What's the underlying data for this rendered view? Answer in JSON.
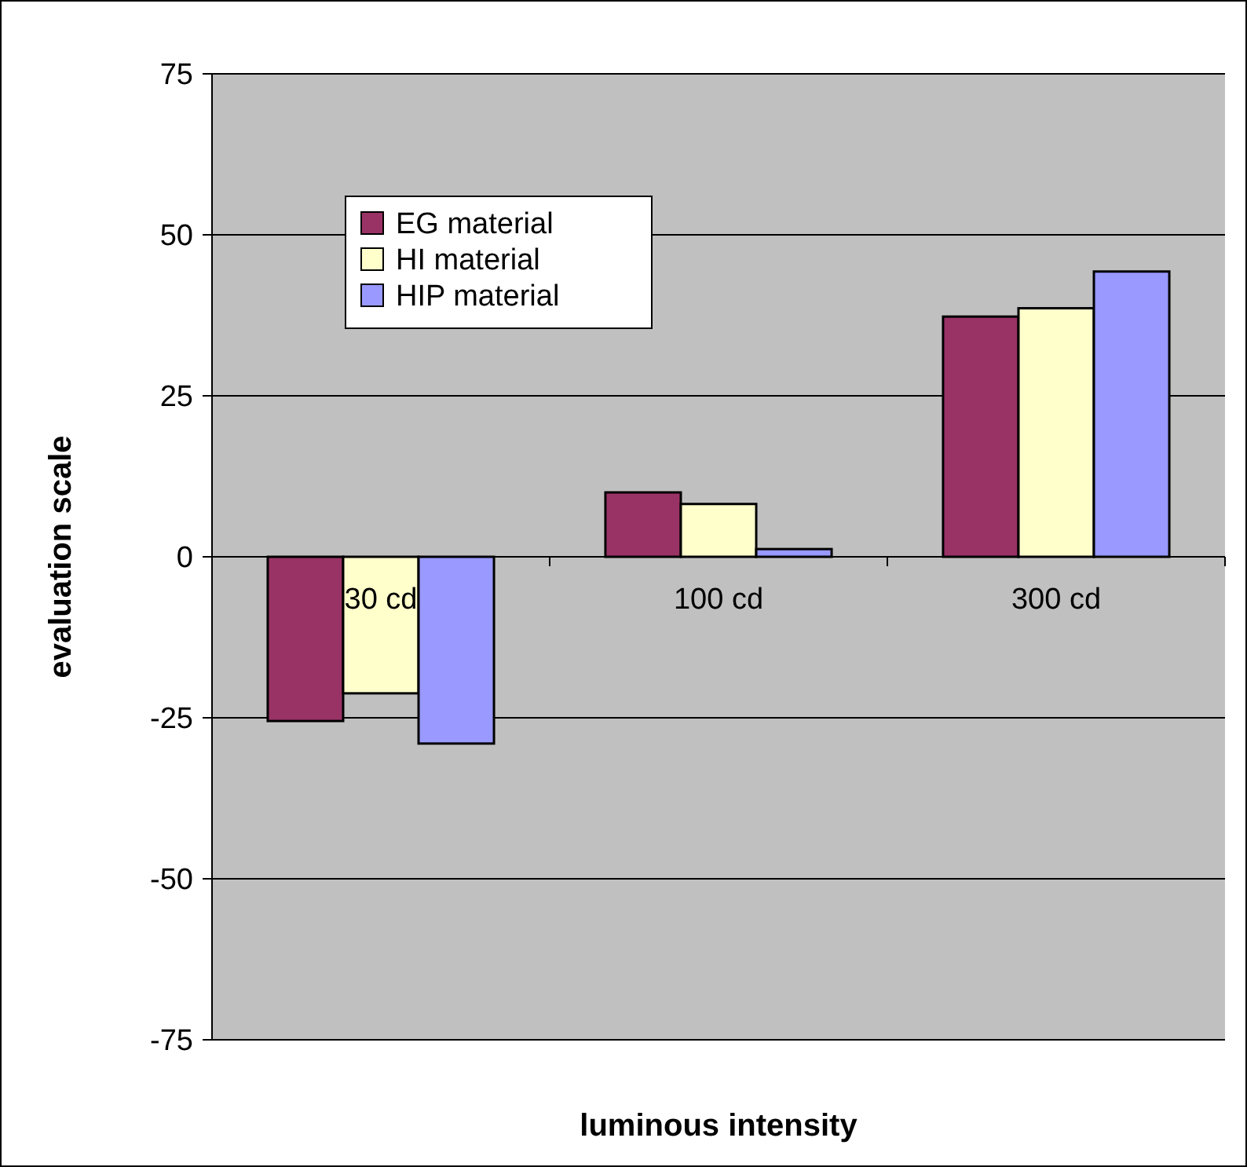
{
  "chart_data": {
    "type": "bar",
    "xlabel": "luminous intensity",
    "ylabel": "evaluation scale",
    "categories": [
      "30 cd",
      "100 cd",
      "300 cd"
    ],
    "series": [
      {
        "name": "EG material",
        "color": "#993366",
        "values": [
          -25.5,
          10,
          37.3
        ]
      },
      {
        "name": "HI material",
        "color": "#ffffcc",
        "values": [
          -21.2,
          8.2,
          38.6
        ]
      },
      {
        "name": "HIP material",
        "color": "#9999ff",
        "values": [
          -29,
          1.2,
          44.3
        ]
      }
    ],
    "ylim": [
      -75,
      75
    ],
    "yticks": [
      -75,
      -50,
      -25,
      0,
      25,
      50,
      75
    ],
    "grid": "y",
    "legend": "top left"
  }
}
